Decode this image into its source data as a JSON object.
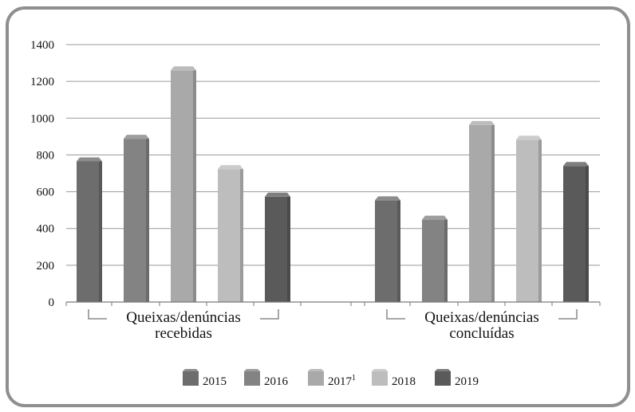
{
  "chart_data": {
    "type": "bar",
    "categories": [
      [
        "Queixas/denúncias",
        "recebidas"
      ],
      [
        "Queixas/denúncias",
        "concluídas"
      ]
    ],
    "series": [
      {
        "name": "2015",
        "values": [
          765,
          553
        ],
        "color": "#6d6d6d"
      },
      {
        "name": "2016",
        "values": [
          888,
          448
        ],
        "color": "#838383"
      },
      {
        "name": "2017",
        "superscript": "1",
        "values": [
          1260,
          963
        ],
        "color": "#a9a9a9"
      },
      {
        "name": "2018",
        "values": [
          723,
          883
        ],
        "color": "#bdbdbd"
      },
      {
        "name": "2019",
        "values": [
          573,
          740
        ],
        "color": "#5a5a5a"
      }
    ],
    "ylim": [
      0,
      1400
    ],
    "yticks": [
      0,
      200,
      400,
      600,
      800,
      1000,
      1200,
      1400
    ],
    "grid": true,
    "legend_position": "bottom",
    "title": "",
    "xlabel": "",
    "ylabel": ""
  }
}
